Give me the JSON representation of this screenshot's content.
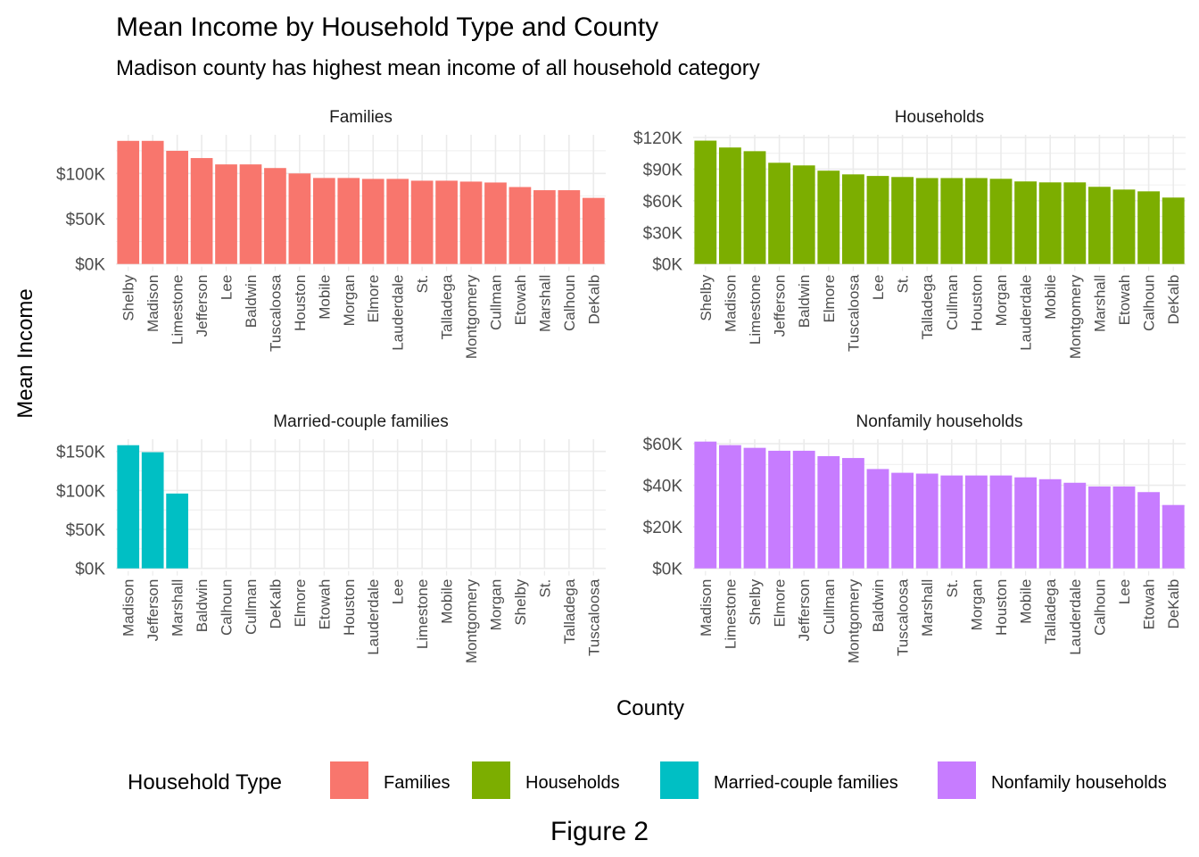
{
  "chart_data": {
    "type": "bar",
    "title": "Mean Income by Household Type and County",
    "subtitle": "Madison county has highest mean income of all household category",
    "xlabel": "County",
    "ylabel": "Mean Income",
    "caption": "Figure 2",
    "grid": true,
    "legend": {
      "title": "Household Type",
      "placement": "bottom",
      "entries": [
        {
          "label": "Families",
          "color": "#F8766D"
        },
        {
          "label": "Households",
          "color": "#7CAE00"
        },
        {
          "label": "Married-couple families",
          "color": "#00BFC4"
        },
        {
          "label": "Nonfamily households",
          "color": "#C77CFF"
        }
      ]
    },
    "panels": [
      {
        "name": "Families",
        "color": "#F8766D",
        "ylim": [
          0,
          140000
        ],
        "yticks": [
          0,
          50000,
          100000
        ],
        "ytick_labels": [
          "$0K",
          "$50K",
          "$100K"
        ],
        "categories": [
          "Shelby",
          "Madison",
          "Limestone",
          "Jefferson",
          "Lee",
          "Baldwin",
          "Tuscaloosa",
          "Houston",
          "Mobile",
          "Morgan",
          "Elmore",
          "Lauderdale",
          "St.",
          "Talladega",
          "Montgomery",
          "Cullman",
          "Etowah",
          "Marshall",
          "Calhoun",
          "DeKalb"
        ],
        "values": [
          136000,
          136000,
          125000,
          117000,
          110000,
          110000,
          106000,
          100000,
          95000,
          95000,
          94000,
          94000,
          92000,
          92000,
          91000,
          90000,
          85000,
          81500,
          81500,
          73000
        ]
      },
      {
        "name": "Households",
        "color": "#7CAE00",
        "ylim": [
          0,
          120000
        ],
        "yticks": [
          0,
          30000,
          60000,
          90000,
          120000
        ],
        "ytick_labels": [
          "$0K",
          "$30K",
          "$60K",
          "$90K",
          "$120K"
        ],
        "categories": [
          "Shelby",
          "Madison",
          "Limestone",
          "Jefferson",
          "Baldwin",
          "Elmore",
          "Tuscaloosa",
          "Lee",
          "St.",
          "Talladega",
          "Cullman",
          "Houston",
          "Morgan",
          "Lauderdale",
          "Mobile",
          "Montgomery",
          "Marshall",
          "Etowah",
          "Calhoun",
          "DeKalb"
        ],
        "values": [
          117000,
          110500,
          107000,
          96000,
          93500,
          88500,
          85000,
          83500,
          82500,
          81500,
          81500,
          81500,
          80800,
          78300,
          77400,
          77400,
          73200,
          70600,
          68900,
          63000
        ]
      },
      {
        "name": "Married-couple families",
        "color": "#00BFC4",
        "ylim": [
          0,
          160000
        ],
        "yticks": [
          0,
          50000,
          100000,
          150000
        ],
        "ytick_labels": [
          "$0K",
          "$50K",
          "$100K",
          "$150K"
        ],
        "categories": [
          "Madison",
          "Jefferson",
          "Marshall",
          "Baldwin",
          "Calhoun",
          "Cullman",
          "DeKalb",
          "Elmore",
          "Etowah",
          "Houston",
          "Lauderdale",
          "Lee",
          "Limestone",
          "Mobile",
          "Montgomery",
          "Morgan",
          "Shelby",
          "St.",
          "Talladega",
          "Tuscaloosa"
        ],
        "values": [
          158000,
          149000,
          96000,
          null,
          null,
          null,
          null,
          null,
          null,
          null,
          null,
          null,
          null,
          null,
          null,
          null,
          null,
          null,
          null,
          null
        ]
      },
      {
        "name": "Nonfamily households",
        "color": "#C77CFF",
        "ylim": [
          0,
          62000
        ],
        "yticks": [
          0,
          20000,
          40000,
          60000
        ],
        "ytick_labels": [
          "$0K",
          "$20K",
          "$40K",
          "$60K"
        ],
        "categories": [
          "Madison",
          "Limestone",
          "Shelby",
          "Elmore",
          "Jefferson",
          "Cullman",
          "Montgomery",
          "Baldwin",
          "Tuscaloosa",
          "Marshall",
          "St.",
          "Morgan",
          "Houston",
          "Mobile",
          "Talladega",
          "Lauderdale",
          "Calhoun",
          "Lee",
          "Etowah",
          "DeKalb"
        ],
        "values": [
          61000,
          59300,
          58000,
          56600,
          56600,
          54000,
          53100,
          47800,
          46000,
          45600,
          44700,
          44700,
          44700,
          43800,
          42900,
          41200,
          39400,
          39400,
          36700,
          30500
        ]
      }
    ]
  }
}
